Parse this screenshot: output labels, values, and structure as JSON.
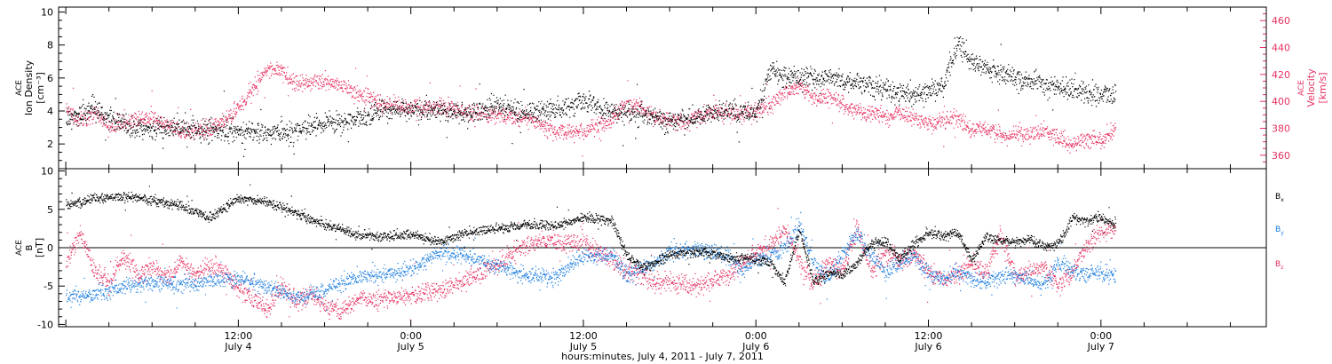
{
  "figure": {
    "xlabel": "hours:minutes, July  4, 2011 - July  7, 2011",
    "x_ticks": [
      {
        "t": 18,
        "time": "12:00",
        "date": "July 4"
      },
      {
        "t": 30,
        "time": "0:00",
        "date": "July 5"
      },
      {
        "t": 42,
        "time": "12:00",
        "date": "July 5"
      },
      {
        "t": 54,
        "time": "0:00",
        "date": "July 6"
      },
      {
        "t": 66,
        "time": "12:00",
        "date": "July 6"
      },
      {
        "t": 78,
        "time": "0:00",
        "date": "July 7"
      }
    ]
  },
  "colors": {
    "black": "#000000",
    "pink": "#e8305f",
    "blue": "#1e7fe0"
  },
  "chart_data": [
    {
      "type": "scatter",
      "panel": "top",
      "ylabel_left": [
        "ACE",
        "Ion Density",
        "[cm⁻³]"
      ],
      "ylabel_right": [
        "ACE",
        "Velocity",
        "[km/s]"
      ],
      "x_range_hours": [
        5.5,
        89.5
      ],
      "ylim_left": [
        0.5,
        10.3
      ],
      "ylim_right": [
        350,
        470
      ],
      "yticks_left": [
        2,
        4,
        6,
        8,
        10
      ],
      "yticks_right": [
        360,
        380,
        400,
        420,
        440,
        460
      ],
      "series": [
        {
          "axis": "left",
          "color": "#000000",
          "points": [
            [
              6,
              3.5
            ],
            [
              8,
              4.2
            ],
            [
              10,
              3.1
            ],
            [
              12,
              2.9
            ],
            [
              14,
              3.0
            ],
            [
              16,
              2.8
            ],
            [
              18,
              2.8
            ],
            [
              20,
              2.7
            ],
            [
              22,
              2.8
            ],
            [
              24,
              3.3
            ],
            [
              26,
              3.5
            ],
            [
              28,
              4.0
            ],
            [
              30,
              4.1
            ],
            [
              32,
              4.0
            ],
            [
              34,
              3.8
            ],
            [
              36,
              4.3
            ],
            [
              38,
              3.9
            ],
            [
              40,
              4.1
            ],
            [
              42,
              4.6
            ],
            [
              44,
              4.0
            ],
            [
              46,
              3.8
            ],
            [
              48,
              3.4
            ],
            [
              50,
              3.7
            ],
            [
              52,
              4.0
            ],
            [
              54,
              3.9
            ],
            [
              55,
              6.5
            ],
            [
              57,
              6.0
            ],
            [
              59,
              6.1
            ],
            [
              61,
              5.8
            ],
            [
              63,
              5.3
            ],
            [
              65,
              4.9
            ],
            [
              67,
              5.6
            ],
            [
              68,
              8.2
            ],
            [
              69,
              7.0
            ],
            [
              71,
              6.4
            ],
            [
              73,
              5.8
            ],
            [
              75,
              5.5
            ],
            [
              77,
              5.0
            ],
            [
              79,
              5.0
            ]
          ]
        },
        {
          "axis": "right",
          "color": "#e8305f",
          "points": [
            [
              6,
              395
            ],
            [
              7,
              385
            ],
            [
              8,
              392
            ],
            [
              9,
              381
            ],
            [
              10,
              385
            ],
            [
              12,
              388
            ],
            [
              13,
              383
            ],
            [
              14,
              378
            ],
            [
              16,
              380
            ],
            [
              17,
              386
            ],
            [
              18,
              395
            ],
            [
              19,
              410
            ],
            [
              20,
              425
            ],
            [
              21,
              423
            ],
            [
              22,
              413
            ],
            [
              24,
              415
            ],
            [
              25,
              412
            ],
            [
              26,
              407
            ],
            [
              28,
              398
            ],
            [
              30,
              396
            ],
            [
              32,
              396
            ],
            [
              34,
              392
            ],
            [
              36,
              390
            ],
            [
              38,
              388
            ],
            [
              40,
              377
            ],
            [
              42,
              378
            ],
            [
              44,
              388
            ],
            [
              45,
              398
            ],
            [
              46,
              396
            ],
            [
              47,
              388
            ],
            [
              49,
              385
            ],
            [
              51,
              393
            ],
            [
              53,
              390
            ],
            [
              55,
              398
            ],
            [
              56,
              407
            ],
            [
              57,
              412
            ],
            [
              58,
              403
            ],
            [
              59,
              406
            ],
            [
              60,
              398
            ],
            [
              61,
              393
            ],
            [
              63,
              389
            ],
            [
              64,
              391
            ],
            [
              65,
              388
            ],
            [
              66,
              383
            ],
            [
              67,
              386
            ],
            [
              68,
              389
            ],
            [
              69,
              378
            ],
            [
              70,
              381
            ],
            [
              71,
              375
            ],
            [
              72,
              377
            ],
            [
              73,
              375
            ],
            [
              74,
              379
            ],
            [
              75,
              373
            ],
            [
              76,
              369
            ],
            [
              77,
              373
            ],
            [
              78,
              370
            ],
            [
              79,
              380
            ]
          ]
        }
      ]
    },
    {
      "type": "scatter",
      "panel": "bottom",
      "ylabel_left": [
        "ACE",
        "B",
        "[nT]"
      ],
      "x_range_hours": [
        5.5,
        89.5
      ],
      "ylim": [
        -10.3,
        10.3
      ],
      "yticks": [
        -10,
        -5,
        0,
        5,
        10
      ],
      "legend": [
        "Bx",
        "By",
        "Bz"
      ],
      "series": [
        {
          "name": "Bx",
          "color": "#000000",
          "points": [
            [
              6,
              5.5
            ],
            [
              8,
              6.5
            ],
            [
              10,
              6.8
            ],
            [
              12,
              6.2
            ],
            [
              14,
              5.5
            ],
            [
              16,
              4.0
            ],
            [
              18,
              6.5
            ],
            [
              20,
              6.0
            ],
            [
              22,
              4.5
            ],
            [
              24,
              3.0
            ],
            [
              25,
              2.5
            ],
            [
              26,
              1.8
            ],
            [
              28,
              1.5
            ],
            [
              30,
              1.8
            ],
            [
              32,
              0.8
            ],
            [
              34,
              2.0
            ],
            [
              36,
              2.5
            ],
            [
              38,
              3.0
            ],
            [
              40,
              2.8
            ],
            [
              42,
              4.0
            ],
            [
              44,
              3.5
            ],
            [
              45,
              -1.0
            ],
            [
              46,
              -2.5
            ],
            [
              47,
              -2.0
            ],
            [
              48,
              -0.8
            ],
            [
              50,
              -0.5
            ],
            [
              52,
              -1.2
            ],
            [
              54,
              -1.5
            ],
            [
              55,
              -2.0
            ],
            [
              56,
              -4.5
            ],
            [
              57,
              2.5
            ],
            [
              58,
              -4.5
            ],
            [
              59,
              -3.2
            ],
            [
              60,
              -3.5
            ],
            [
              61,
              -2.0
            ],
            [
              62,
              0.5
            ],
            [
              63,
              0.8
            ],
            [
              64,
              -1.5
            ],
            [
              65,
              0.5
            ],
            [
              66,
              2.0
            ],
            [
              67,
              1.5
            ],
            [
              68,
              2.0
            ],
            [
              69,
              -1.5
            ],
            [
              70,
              1.5
            ],
            [
              71,
              1.0
            ],
            [
              72,
              0.8
            ],
            [
              73,
              1.0
            ],
            [
              74,
              0.2
            ],
            [
              75,
              0.5
            ],
            [
              76,
              4.0
            ],
            [
              77,
              3.5
            ],
            [
              78,
              4.0
            ],
            [
              79,
              3.0
            ]
          ]
        },
        {
          "name": "By",
          "color": "#1e7fe0",
          "points": [
            [
              6,
              -6.5
            ],
            [
              8,
              -6.0
            ],
            [
              10,
              -5.0
            ],
            [
              12,
              -4.5
            ],
            [
              14,
              -4.8
            ],
            [
              16,
              -4.2
            ],
            [
              18,
              -4.0
            ],
            [
              20,
              -5.0
            ],
            [
              22,
              -6.5
            ],
            [
              24,
              -5.5
            ],
            [
              26,
              -4.0
            ],
            [
              28,
              -3.5
            ],
            [
              30,
              -2.8
            ],
            [
              32,
              -0.5
            ],
            [
              34,
              -1.0
            ],
            [
              36,
              -2.5
            ],
            [
              38,
              -3.5
            ],
            [
              40,
              -3.8
            ],
            [
              42,
              -1.0
            ],
            [
              44,
              -0.8
            ],
            [
              45,
              -3.5
            ],
            [
              46,
              -2.5
            ],
            [
              47,
              -1.8
            ],
            [
              48,
              -0.5
            ],
            [
              50,
              -0.2
            ],
            [
              52,
              -1.0
            ],
            [
              53,
              -3.0
            ],
            [
              54,
              -1.5
            ],
            [
              55,
              -1.0
            ],
            [
              56,
              0.0
            ],
            [
              57,
              3.0
            ],
            [
              58,
              -2.0
            ],
            [
              59,
              -4.0
            ],
            [
              60,
              -1.0
            ],
            [
              61,
              2.0
            ],
            [
              62,
              -1.0
            ],
            [
              63,
              -3.0
            ],
            [
              64,
              -2.0
            ],
            [
              65,
              -1.0
            ],
            [
              66,
              -3.5
            ],
            [
              67,
              -4.0
            ],
            [
              68,
              -3.0
            ],
            [
              69,
              -4.0
            ],
            [
              70,
              -4.5
            ],
            [
              71,
              -3.8
            ],
            [
              72,
              -3.5
            ],
            [
              73,
              -4.0
            ],
            [
              74,
              -5.0
            ],
            [
              75,
              -2.0
            ],
            [
              76,
              -3.0
            ],
            [
              77,
              -3.5
            ],
            [
              78,
              -3.2
            ],
            [
              79,
              -3.5
            ]
          ]
        },
        {
          "name": "Bz",
          "color": "#e8305f",
          "points": [
            [
              6,
              -1.5
            ],
            [
              7,
              2.0
            ],
            [
              8,
              -3.0
            ],
            [
              9,
              -4.5
            ],
            [
              10,
              -1.0
            ],
            [
              11,
              -3.5
            ],
            [
              12,
              -2.5
            ],
            [
              13,
              -4.0
            ],
            [
              14,
              -2.0
            ],
            [
              15,
              -3.5
            ],
            [
              16,
              -2.5
            ],
            [
              17,
              -3.0
            ],
            [
              18,
              -5.5
            ],
            [
              19,
              -6.5
            ],
            [
              20,
              -8.0
            ],
            [
              21,
              -5.0
            ],
            [
              22,
              -7.0
            ],
            [
              23,
              -6.0
            ],
            [
              24,
              -7.5
            ],
            [
              25,
              -8.0
            ],
            [
              26,
              -7.0
            ],
            [
              28,
              -6.5
            ],
            [
              30,
              -6.0
            ],
            [
              32,
              -5.5
            ],
            [
              34,
              -4.0
            ],
            [
              36,
              -2.0
            ],
            [
              38,
              0.5
            ],
            [
              40,
              1.0
            ],
            [
              42,
              0.5
            ],
            [
              44,
              -1.5
            ],
            [
              45,
              -3.0
            ],
            [
              46,
              -3.5
            ],
            [
              47,
              -4.5
            ],
            [
              48,
              -4.5
            ],
            [
              50,
              -4.8
            ],
            [
              52,
              -3.5
            ],
            [
              53,
              -2.0
            ],
            [
              54,
              -0.5
            ],
            [
              55,
              0.5
            ],
            [
              56,
              2.5
            ],
            [
              57,
              -1.5
            ],
            [
              58,
              -5.0
            ],
            [
              59,
              -2.0
            ],
            [
              60,
              -3.0
            ],
            [
              61,
              2.5
            ],
            [
              62,
              -3.0
            ],
            [
              63,
              -0.5
            ],
            [
              64,
              -2.0
            ],
            [
              65,
              -0.8
            ],
            [
              66,
              -3.0
            ],
            [
              67,
              -4.0
            ],
            [
              68,
              -3.5
            ],
            [
              69,
              -2.0
            ],
            [
              70,
              -3.0
            ],
            [
              71,
              2.0
            ],
            [
              72,
              -4.0
            ],
            [
              73,
              -3.0
            ],
            [
              74,
              -2.5
            ],
            [
              75,
              -5.0
            ],
            [
              76,
              -3.0
            ],
            [
              77,
              0.5
            ],
            [
              78,
              2.0
            ],
            [
              79,
              2.5
            ]
          ]
        }
      ]
    }
  ]
}
